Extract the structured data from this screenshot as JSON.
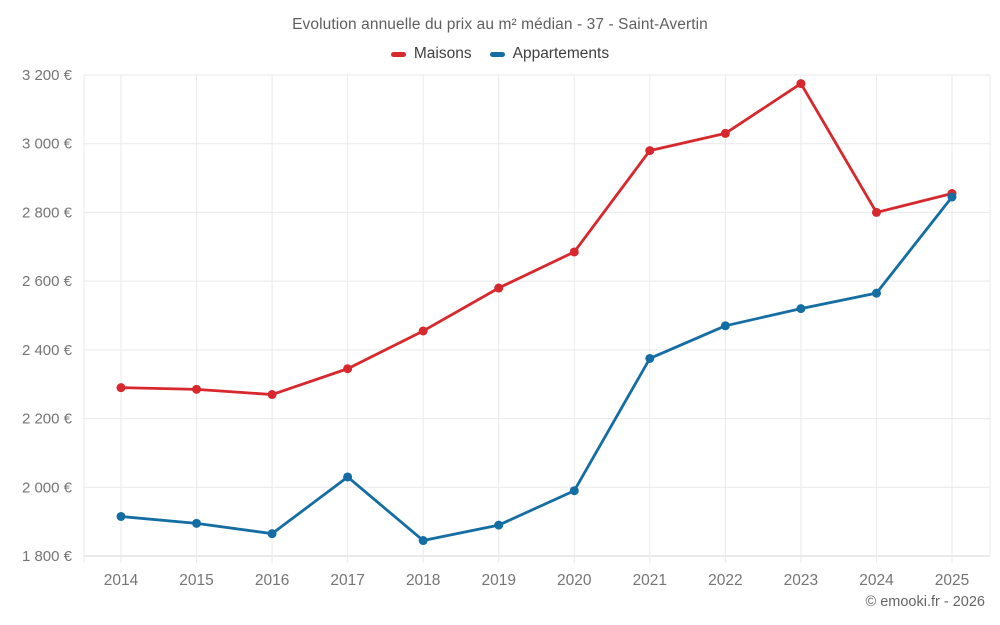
{
  "chart": {
    "title": "Evolution annuelle du prix au m² médian - 37 - Saint-Avertin",
    "copyright": "© emooki.fr - 2026"
  },
  "chart_data": {
    "type": "line",
    "title": "Evolution annuelle du prix au m² médian - 37 - Saint-Avertin",
    "categories": [
      "2014",
      "2015",
      "2016",
      "2017",
      "2018",
      "2019",
      "2020",
      "2021",
      "2022",
      "2023",
      "2024",
      "2025"
    ],
    "series": [
      {
        "name": "Maisons",
        "color": "#d7282d",
        "values": [
          2290,
          2285,
          2270,
          2345,
          2455,
          2580,
          2685,
          2980,
          3030,
          3175,
          2800,
          2855
        ]
      },
      {
        "name": "Appartements",
        "color": "#146da3",
        "values": [
          1915,
          1895,
          1865,
          2030,
          1845,
          1890,
          1990,
          2375,
          2470,
          2520,
          2565,
          2845
        ]
      }
    ],
    "xlabel": "",
    "ylabel": "",
    "ylim": [
      1800,
      3200
    ],
    "y_ticks": [
      1800,
      2000,
      2200,
      2400,
      2600,
      2800,
      3000,
      3200
    ],
    "y_tick_suffix": " €",
    "grid": true,
    "legend_position": "top",
    "colors": {
      "grid_line": "#e9e9e9",
      "axis_line": "#d6d6d6",
      "tick_label": "#757575"
    }
  }
}
